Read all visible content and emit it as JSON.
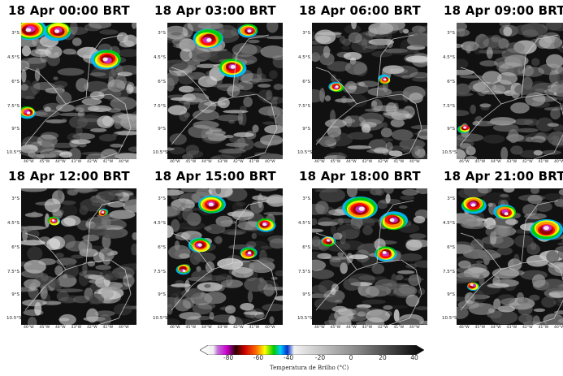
{
  "panels": [
    {
      "title": "18 Apr 00:00 BRT"
    },
    {
      "title": "18 Apr 03:00 BRT"
    },
    {
      "title": "18 Apr 06:00 BRT"
    },
    {
      "title": "18 Apr 09:00 BRT"
    },
    {
      "title": "18 Apr 12:00 BRT"
    },
    {
      "title": "18 Apr 15:00 BRT"
    },
    {
      "title": "18 Apr 18:00 BRT"
    },
    {
      "title": "18 Apr 21:00 BRT"
    }
  ],
  "lat_labels": [
    "3°S",
    "4.5°S",
    "6°S",
    "7.5°S",
    "9°S",
    "10.5°S"
  ],
  "lon_labels": [
    "46°W",
    "45°W",
    "44°W",
    "43°W",
    "42°W",
    "41°W",
    "40°W"
  ],
  "colorbar": {
    "label": "Temperatura de Brilho (°C)",
    "ticks": [
      "-80",
      "-60",
      "-40",
      "-20",
      "0",
      "20",
      "40"
    ],
    "min": -90,
    "max": 45,
    "colors": [
      "#ffffff",
      "#b04bc8",
      "#cc00cc",
      "#8b0000",
      "#ff0000",
      "#ffa500",
      "#ffff00",
      "#00cc00",
      "#00aaff",
      "#0000cc",
      "#dddddd",
      "#888888",
      "#000000"
    ]
  }
}
